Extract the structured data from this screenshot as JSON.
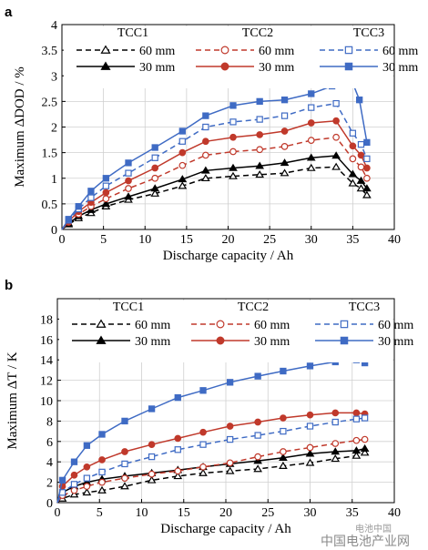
{
  "chart_data": [
    {
      "type": "line",
      "panel_label": "a",
      "xlabel": "Discharge capacity / Ah",
      "ylabel": "Maximum ΔDOD / %",
      "xlim": [
        0,
        40
      ],
      "ylim": [
        0,
        4
      ],
      "xticks": [
        0,
        5,
        10,
        15,
        20,
        25,
        30,
        35,
        40
      ],
      "yticks": [
        0,
        0.5,
        1,
        1.5,
        2,
        2.5,
        3,
        3.5,
        4
      ],
      "ytick_labels": [
        "0",
        "0.5",
        "1",
        "1.5",
        "2",
        "2.5",
        "3",
        "3.5",
        "4"
      ],
      "grid": true,
      "legend": {
        "position": "top",
        "group_headers": [
          "TCC1",
          "TCC2",
          "TCC3"
        ],
        "row_labels": [
          "60 mm",
          "30 mm"
        ]
      },
      "series": [
        {
          "group": "TCC1",
          "label": "60 mm",
          "color": "#000000",
          "dash": true,
          "marker": "triangle-open",
          "x": [
            0,
            0.8,
            2,
            3.5,
            5.3,
            8,
            11.2,
            14.5,
            17.3,
            20.6,
            23.8,
            26.8,
            30,
            33,
            35,
            36,
            36.7
          ],
          "y": [
            0,
            0.1,
            0.22,
            0.32,
            0.45,
            0.58,
            0.7,
            0.85,
            1.0,
            1.04,
            1.07,
            1.1,
            1.2,
            1.22,
            0.9,
            0.8,
            0.67
          ]
        },
        {
          "group": "TCC1",
          "label": "30 mm",
          "color": "#000000",
          "dash": false,
          "marker": "triangle-filled",
          "x": [
            0,
            0.8,
            2,
            3.5,
            5.3,
            8,
            11.2,
            14.5,
            17.3,
            20.6,
            23.8,
            26.8,
            30,
            33,
            35,
            36,
            36.7
          ],
          "y": [
            0,
            0.12,
            0.26,
            0.38,
            0.5,
            0.64,
            0.8,
            0.98,
            1.15,
            1.2,
            1.24,
            1.3,
            1.4,
            1.44,
            1.08,
            0.95,
            0.8
          ]
        },
        {
          "group": "TCC2",
          "label": "60 mm",
          "color": "#c0392b",
          "dash": true,
          "marker": "circle-open",
          "x": [
            0,
            0.8,
            2,
            3.5,
            5.3,
            8,
            11.2,
            14.5,
            17.3,
            20.6,
            23.8,
            26.8,
            30,
            33,
            35,
            36,
            36.7
          ],
          "y": [
            0,
            0.14,
            0.3,
            0.45,
            0.6,
            0.8,
            1.0,
            1.25,
            1.45,
            1.52,
            1.56,
            1.62,
            1.74,
            1.8,
            1.38,
            1.22,
            1.0
          ]
        },
        {
          "group": "TCC2",
          "label": "30 mm",
          "color": "#c0392b",
          "dash": false,
          "marker": "circle-filled",
          "x": [
            0,
            0.8,
            2,
            3.5,
            5.3,
            8,
            11.2,
            14.5,
            17.3,
            20.6,
            23.8,
            26.8,
            30,
            33,
            35,
            36,
            36.7
          ],
          "y": [
            0,
            0.16,
            0.35,
            0.53,
            0.72,
            0.95,
            1.2,
            1.5,
            1.72,
            1.8,
            1.85,
            1.92,
            2.08,
            2.12,
            1.63,
            1.45,
            1.2
          ]
        },
        {
          "group": "TCC3",
          "label": "60 mm",
          "color": "#3f6bc4",
          "dash": true,
          "marker": "square-open",
          "x": [
            0,
            0.8,
            2,
            3.5,
            5.3,
            8,
            11.2,
            14.5,
            17.3,
            20.6,
            23.8,
            26.8,
            30,
            33,
            35,
            36,
            36.7
          ],
          "y": [
            0,
            0.18,
            0.4,
            0.62,
            0.85,
            1.1,
            1.4,
            1.72,
            2.0,
            2.1,
            2.15,
            2.22,
            2.38,
            2.46,
            1.88,
            1.66,
            1.38
          ]
        },
        {
          "group": "TCC3",
          "label": "30 mm",
          "color": "#3f6bc4",
          "dash": false,
          "marker": "square-filled",
          "x": [
            0,
            0.8,
            2,
            3.5,
            5.3,
            8,
            11.2,
            14.5,
            17.3,
            20.6,
            23.8,
            26.8,
            30,
            32.5,
            34.8,
            35.8,
            36.7
          ],
          "y": [
            0,
            0.2,
            0.45,
            0.75,
            1.0,
            1.3,
            1.6,
            1.92,
            2.22,
            2.42,
            2.5,
            2.53,
            2.65,
            2.8,
            2.94,
            2.53,
            1.7
          ]
        }
      ]
    },
    {
      "type": "line",
      "panel_label": "b",
      "xlabel": "Discharge capacity / Ah",
      "ylabel": "Maximum ΔT / K",
      "xlim": [
        0,
        40
      ],
      "ylim": [
        0,
        20
      ],
      "xticks": [
        0,
        5,
        10,
        15,
        20,
        25,
        30,
        35,
        40
      ],
      "yticks": [
        0,
        2,
        4,
        6,
        8,
        10,
        12,
        14,
        16,
        18
      ],
      "ytick_labels": [
        "0",
        "2",
        "4",
        "6",
        "8",
        "10",
        "12",
        "14",
        "16",
        "18"
      ],
      "grid": true,
      "legend": {
        "position": "top",
        "group_headers": [
          "TCC1",
          "TCC2",
          "TCC3"
        ],
        "row_labels": [
          "60 mm",
          "30 mm"
        ]
      },
      "series": [
        {
          "group": "TCC1",
          "label": "60 mm",
          "color": "#000000",
          "dash": true,
          "marker": "triangle-open",
          "x": [
            0,
            0.6,
            2,
            3.5,
            5.3,
            8,
            11.2,
            14.3,
            17.3,
            20.5,
            23.8,
            26.8,
            30,
            33,
            35.5,
            36.5
          ],
          "y": [
            0,
            0.4,
            0.8,
            1.0,
            1.2,
            1.6,
            2.2,
            2.6,
            2.9,
            3.1,
            3.3,
            3.6,
            3.9,
            4.3,
            4.6,
            4.9
          ]
        },
        {
          "group": "TCC1",
          "label": "30 mm",
          "color": "#000000",
          "dash": false,
          "marker": "triangle-filled",
          "x": [
            0,
            0.6,
            2,
            3.5,
            5.3,
            8,
            11.2,
            14.3,
            17.3,
            20.5,
            23.8,
            26.8,
            30,
            33,
            35.5,
            36.5
          ],
          "y": [
            0,
            1.0,
            1.6,
            2.0,
            2.3,
            2.6,
            2.9,
            3.2,
            3.5,
            3.8,
            4.1,
            4.4,
            4.8,
            5.0,
            5.1,
            5.3
          ]
        },
        {
          "group": "TCC2",
          "label": "60 mm",
          "color": "#c0392b",
          "dash": true,
          "marker": "circle-open",
          "x": [
            0,
            0.6,
            2,
            3.5,
            5.3,
            8,
            11.2,
            14.3,
            17.3,
            20.5,
            23.8,
            26.8,
            30,
            33,
            35.5,
            36.5
          ],
          "y": [
            0,
            0.7,
            1.2,
            1.6,
            2.0,
            2.4,
            2.8,
            3.1,
            3.5,
            3.9,
            4.5,
            5.0,
            5.4,
            5.8,
            6.1,
            6.2
          ]
        },
        {
          "group": "TCC2",
          "label": "30 mm",
          "color": "#c0392b",
          "dash": false,
          "marker": "circle-filled",
          "x": [
            0,
            0.6,
            2,
            3.5,
            5.3,
            8,
            11.2,
            14.3,
            17.3,
            20.5,
            23.8,
            26.8,
            30,
            33,
            35.5,
            36.5
          ],
          "y": [
            0,
            1.6,
            2.7,
            3.5,
            4.2,
            5.0,
            5.7,
            6.3,
            6.9,
            7.5,
            7.9,
            8.3,
            8.6,
            8.8,
            8.8,
            8.7
          ]
        },
        {
          "group": "TCC3",
          "label": "60 mm",
          "color": "#3f6bc4",
          "dash": true,
          "marker": "square-open",
          "x": [
            0,
            0.6,
            2,
            3.5,
            5.3,
            8,
            11.2,
            14.3,
            17.3,
            20.5,
            23.8,
            26.8,
            30,
            33,
            35.5,
            36.5
          ],
          "y": [
            0,
            1.0,
            1.8,
            2.4,
            3.0,
            3.8,
            4.5,
            5.2,
            5.7,
            6.2,
            6.6,
            7.0,
            7.5,
            7.9,
            8.2,
            8.3
          ]
        },
        {
          "group": "TCC3",
          "label": "30 mm",
          "color": "#3f6bc4",
          "dash": false,
          "marker": "square-filled",
          "x": [
            0,
            0.6,
            2,
            3.5,
            5.3,
            8,
            11.2,
            14.3,
            17.3,
            20.5,
            23.8,
            26.8,
            30,
            33,
            35.5,
            36.5
          ],
          "y": [
            0,
            2.2,
            4.0,
            5.6,
            6.7,
            8.0,
            9.2,
            10.3,
            11.0,
            11.8,
            12.4,
            12.9,
            13.4,
            13.8,
            14.0,
            13.7
          ]
        }
      ]
    }
  ],
  "watermark": {
    "line1": "电池中国",
    "line2": "中国电池产业网"
  }
}
